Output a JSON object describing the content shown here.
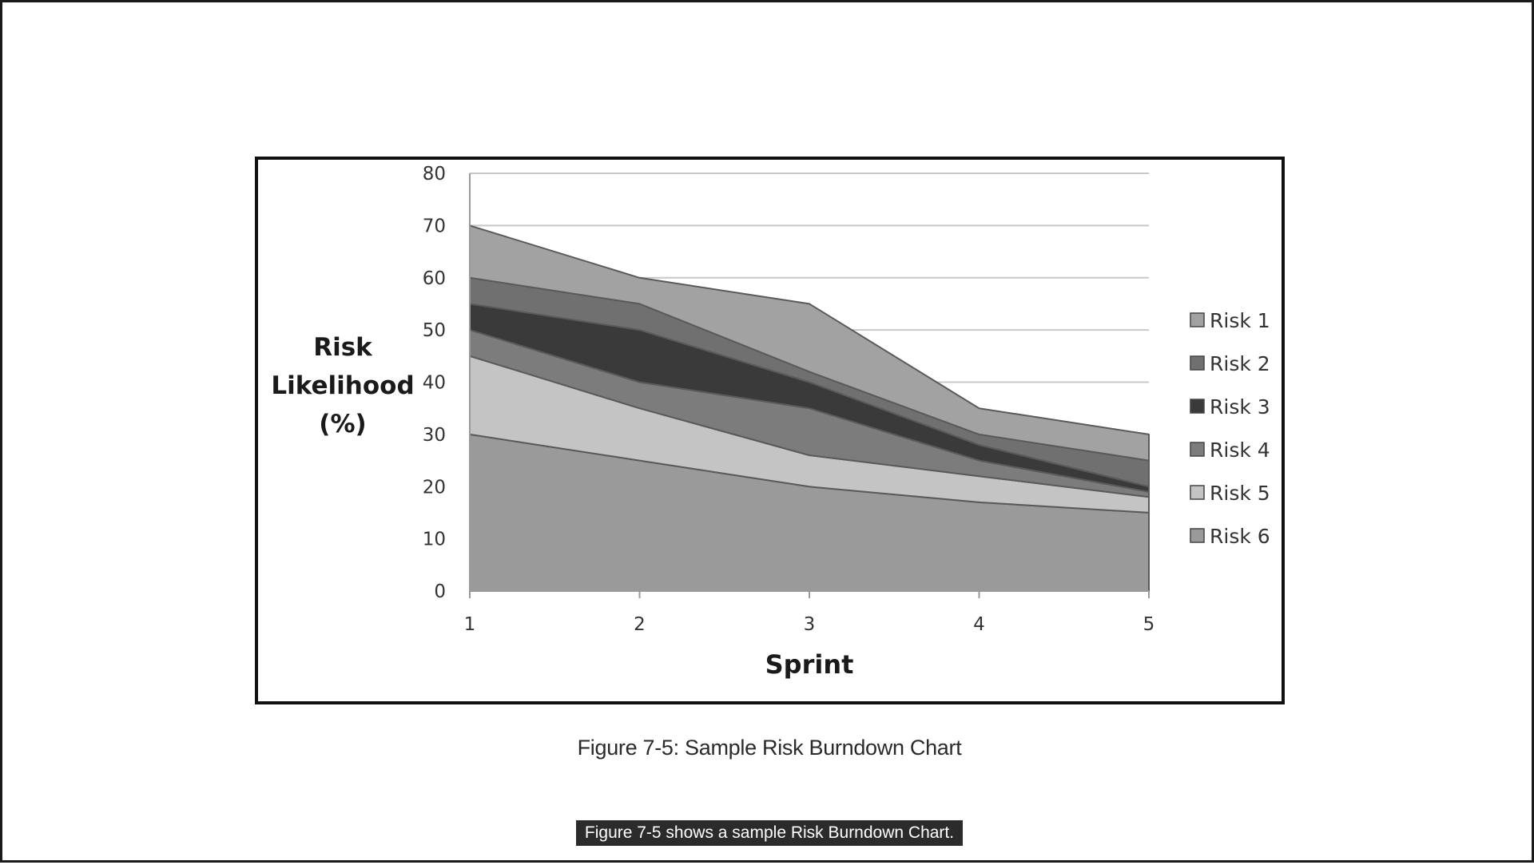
{
  "figure_caption": "Figure 7-5: Sample Risk Burndown Chart",
  "subtitle_text": "Figure 7-5 shows a sample Risk Burndown Chart.",
  "chart_data": {
    "type": "area",
    "stacked": true,
    "title": "",
    "xlabel": "Sprint",
    "ylabel_lines": [
      "Risk",
      "Likelihood",
      "(%)"
    ],
    "categories": [
      "1",
      "2",
      "3",
      "4",
      "5"
    ],
    "ylim": [
      0,
      80
    ],
    "yticks": [
      "0",
      "10",
      "20",
      "30",
      "40",
      "50",
      "60",
      "70",
      "80"
    ],
    "grid": true,
    "legend_position": "right",
    "series": [
      {
        "name": "Risk 6",
        "values": [
          30,
          25,
          20,
          17,
          15
        ],
        "color": "#9a9a9a"
      },
      {
        "name": "Risk 5",
        "values": [
          15,
          10,
          6,
          5,
          3
        ],
        "color": "#c4c4c4"
      },
      {
        "name": "Risk 4",
        "values": [
          5,
          5,
          9,
          3,
          1
        ],
        "color": "#7c7c7c"
      },
      {
        "name": "Risk 3",
        "values": [
          5,
          10,
          5,
          3,
          1
        ],
        "color": "#3a3a3a"
      },
      {
        "name": "Risk 2",
        "values": [
          5,
          5,
          2,
          2,
          5
        ],
        "color": "#707070"
      },
      {
        "name": "Risk 1",
        "values": [
          10,
          5,
          13,
          5,
          5
        ],
        "color": "#a2a2a2"
      }
    ],
    "legend_order": [
      "Risk 1",
      "Risk 2",
      "Risk 3",
      "Risk 4",
      "Risk 5",
      "Risk 6"
    ]
  }
}
